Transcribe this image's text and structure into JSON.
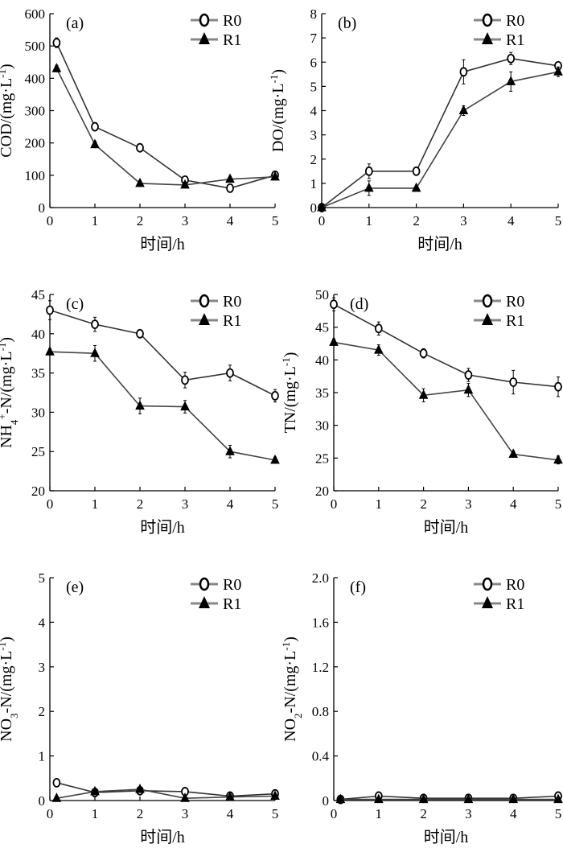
{
  "chart_data": [
    {
      "type": "line",
      "panel_label": "(a)",
      "xlabel": "时间/h",
      "ylabel_parts": [
        {
          "t": "COD/(mg·L"
        },
        {
          "t": "-1",
          "sup": true
        },
        {
          "t": ")"
        }
      ],
      "xlim": [
        0,
        5
      ],
      "ylim": [
        0,
        600
      ],
      "xticks": [
        0,
        1,
        2,
        3,
        4,
        5
      ],
      "yticks": [
        0,
        100,
        200,
        300,
        400,
        500,
        600
      ],
      "x_start": 0.15,
      "x": [
        0,
        1,
        2,
        3,
        4,
        5
      ],
      "series": [
        {
          "name": "R0",
          "marker": "circle-open",
          "values": [
            510,
            250,
            185,
            85,
            60,
            100
          ],
          "errors": [
            15,
            12,
            12,
            10,
            12,
            10
          ]
        },
        {
          "name": "R1",
          "marker": "triangle-filled",
          "values": [
            430,
            195,
            75,
            70,
            88,
            95
          ],
          "errors": [
            10,
            10,
            8,
            8,
            8,
            8
          ]
        }
      ],
      "legend": "top-right"
    },
    {
      "type": "line",
      "panel_label": "(b)",
      "xlabel": "时间/h",
      "ylabel_parts": [
        {
          "t": "DO/(mg·L"
        },
        {
          "t": "-1",
          "sup": true
        },
        {
          "t": ")"
        }
      ],
      "xlim": [
        0,
        5
      ],
      "ylim": [
        0,
        8
      ],
      "xticks": [
        0,
        1,
        2,
        3,
        4,
        5
      ],
      "yticks": [
        0,
        1,
        2,
        3,
        4,
        5,
        6,
        7,
        8
      ],
      "x_start": 0,
      "x": [
        0,
        1,
        2,
        3,
        4,
        5
      ],
      "series": [
        {
          "name": "R0",
          "marker": "circle-open",
          "values": [
            0.0,
            1.5,
            1.5,
            5.6,
            6.15,
            5.85
          ],
          "errors": [
            0,
            0.3,
            0.15,
            0.5,
            0.25,
            0.15
          ]
        },
        {
          "name": "R1",
          "marker": "triangle-filled",
          "values": [
            0.0,
            0.8,
            0.8,
            4.0,
            5.2,
            5.6
          ],
          "errors": [
            0,
            0.3,
            0.1,
            0.2,
            0.4,
            0.2
          ]
        }
      ],
      "legend": "top-right"
    },
    {
      "type": "line",
      "panel_label": "(c)",
      "xlabel": "时间/h",
      "ylabel_parts": [
        {
          "t": "NH"
        },
        {
          "t": "4",
          "sub": true
        },
        {
          "t": "+",
          "sup": true
        },
        {
          "t": "-N/(mg·L"
        },
        {
          "t": "-1",
          "sup": true
        },
        {
          "t": ")"
        }
      ],
      "xlim": [
        0,
        5
      ],
      "ylim": [
        20,
        45
      ],
      "xticks": [
        0,
        1,
        2,
        3,
        4,
        5
      ],
      "yticks": [
        20,
        25,
        30,
        35,
        40,
        45
      ],
      "x_start": 0,
      "x": [
        0,
        1,
        2,
        3,
        4,
        5
      ],
      "series": [
        {
          "name": "R0",
          "marker": "circle-open",
          "values": [
            43.0,
            41.2,
            40.0,
            34.1,
            35.0,
            32.1
          ],
          "errors": [
            1.2,
            0.9,
            0.3,
            1.0,
            1.0,
            0.8
          ]
        },
        {
          "name": "R1",
          "marker": "triangle-filled",
          "values": [
            37.7,
            37.5,
            30.8,
            30.7,
            25.0,
            23.9
          ],
          "errors": [
            0.4,
            1.0,
            1.0,
            0.8,
            0.8,
            0.4
          ]
        }
      ],
      "legend": "top-right"
    },
    {
      "type": "line",
      "panel_label": "(d)",
      "xlabel": "时间/h",
      "ylabel_parts": [
        {
          "t": "TN/(mg·L"
        },
        {
          "t": "-1",
          "sup": true
        },
        {
          "t": ")"
        }
      ],
      "xlim": [
        0,
        5
      ],
      "ylim": [
        20,
        50
      ],
      "xticks": [
        0,
        1,
        2,
        3,
        4,
        5
      ],
      "yticks": [
        20,
        25,
        30,
        35,
        40,
        45,
        50
      ],
      "x_start": 0,
      "x": [
        0,
        1,
        2,
        3,
        4,
        5
      ],
      "series": [
        {
          "name": "R0",
          "marker": "circle-open",
          "values": [
            48.5,
            44.8,
            41.0,
            37.7,
            36.6,
            35.9
          ],
          "errors": [
            1.0,
            1.0,
            0.7,
            1.0,
            1.8,
            1.5
          ]
        },
        {
          "name": "R1",
          "marker": "triangle-filled",
          "values": [
            42.7,
            41.5,
            34.6,
            35.4,
            25.6,
            24.7
          ],
          "errors": [
            0.5,
            0.8,
            1.0,
            1.0,
            0.5,
            0.6
          ]
        }
      ],
      "legend": "top-right"
    },
    {
      "type": "line",
      "panel_label": "(e)",
      "xlabel": "时间/h",
      "ylabel_parts": [
        {
          "t": "NO"
        },
        {
          "t": "3",
          "sub": true
        },
        {
          "t": "-N/(mg·L"
        },
        {
          "t": "-1",
          "sup": true
        },
        {
          "t": ")"
        }
      ],
      "xlim": [
        0,
        5
      ],
      "ylim": [
        0,
        5
      ],
      "xticks": [
        0,
        1,
        2,
        3,
        4,
        5
      ],
      "yticks": [
        0,
        1,
        2,
        3,
        4,
        5
      ],
      "x_start": 0.15,
      "x": [
        0,
        1,
        2,
        3,
        4,
        5
      ],
      "series": [
        {
          "name": "R0",
          "marker": "circle-open",
          "values": [
            0.4,
            0.18,
            0.22,
            0.2,
            0.1,
            0.15
          ],
          "errors": [
            0.05,
            0.05,
            0.08,
            0.05,
            0.05,
            0.05
          ]
        },
        {
          "name": "R1",
          "marker": "triangle-filled",
          "values": [
            0.05,
            0.2,
            0.25,
            0.05,
            0.08,
            0.1
          ],
          "errors": [
            0.03,
            0.05,
            0.05,
            0.03,
            0.03,
            0.03
          ]
        }
      ],
      "legend": "top-right"
    },
    {
      "type": "line",
      "panel_label": "(f)",
      "xlabel": "时间/h",
      "ylabel_parts": [
        {
          "t": "NO"
        },
        {
          "t": "2",
          "sub": true
        },
        {
          "t": "-N/(mg·L"
        },
        {
          "t": "-1",
          "sup": true
        },
        {
          "t": ")"
        }
      ],
      "xlim": [
        0,
        5
      ],
      "ylim": [
        0,
        2.0
      ],
      "xticks": [
        0,
        1,
        2,
        3,
        4,
        5
      ],
      "yticks": [
        0,
        0.4,
        0.8,
        1.2,
        1.6,
        2.0
      ],
      "ytick_labels": [
        "0",
        "0.4",
        "0.8",
        "1.2",
        "1.6",
        "2.0"
      ],
      "x_start": 0.15,
      "x": [
        0,
        1,
        2,
        3,
        4,
        5
      ],
      "series": [
        {
          "name": "R0",
          "marker": "circle-open",
          "values": [
            0.01,
            0.04,
            0.02,
            0.02,
            0.02,
            0.04
          ],
          "errors": [
            0.01,
            0.01,
            0.01,
            0.01,
            0.01,
            0.01
          ]
        },
        {
          "name": "R1",
          "marker": "triangle-filled",
          "values": [
            0.01,
            0.01,
            0.01,
            0.01,
            0.01,
            0.01
          ],
          "errors": [
            0.005,
            0.005,
            0.005,
            0.005,
            0.005,
            0.005
          ]
        }
      ],
      "legend": "top-right"
    }
  ],
  "colors": {
    "R0_line": "#333333",
    "R1_line": "#444444",
    "axis": "#000000"
  }
}
